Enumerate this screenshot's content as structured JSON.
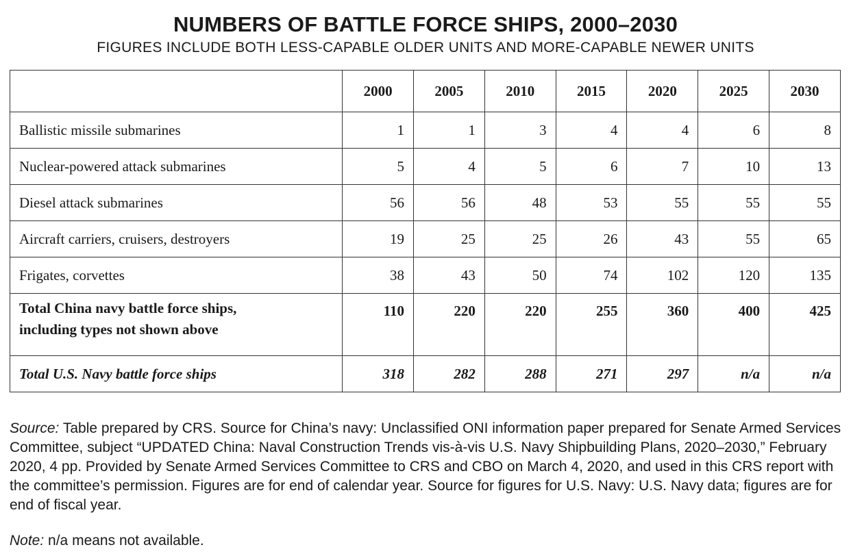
{
  "title": "NUMBERS OF BATTLE FORCE SHIPS, 2000–2030",
  "subtitle": "FIGURES INCLUDE BOTH LESS-CAPABLE OLDER UNITS AND MORE-CAPABLE NEWER UNITS",
  "table": {
    "years": [
      "2000",
      "2005",
      "2010",
      "2015",
      "2020",
      "2025",
      "2030"
    ],
    "rows": [
      {
        "label": "Ballistic missile submarines",
        "values": [
          "1",
          "1",
          "3",
          "4",
          "4",
          "6",
          "8"
        ]
      },
      {
        "label": "Nuclear-powered attack submarines",
        "values": [
          "5",
          "4",
          "5",
          "6",
          "7",
          "10",
          "13"
        ]
      },
      {
        "label": "Diesel attack submarines",
        "values": [
          "56",
          "56",
          "48",
          "53",
          "55",
          "55",
          "55"
        ]
      },
      {
        "label": "Aircraft carriers, cruisers, destroyers",
        "values": [
          "19",
          "25",
          "25",
          "26",
          "43",
          "55",
          "65"
        ]
      },
      {
        "label": "Frigates, corvettes",
        "values": [
          "38",
          "43",
          "50",
          "74",
          "102",
          "120",
          "135"
        ]
      }
    ],
    "total_china": {
      "label_line1": "Total China navy battle force ships,",
      "label_line2": "including types not shown above",
      "values": [
        "110",
        "220",
        "220",
        "255",
        "360",
        "400",
        "425"
      ]
    },
    "total_us": {
      "label": "Total U.S. Navy battle force ships",
      "values": [
        "318",
        "282",
        "288",
        "271",
        "297",
        "n/a",
        "n/a"
      ]
    }
  },
  "source": {
    "label": "Source:",
    "text": "Table prepared by CRS. Source for China’s navy: Unclassified ONI information paper prepared for Senate Armed Services Committee, subject “UPDATED China: Naval Construction Trends vis-à-vis U.S. Navy Shipbuilding Plans, 2020–2030,” February 2020, 4 pp. Provided by Senate Armed Services Committee to CRS and CBO on March 4, 2020, and used in this CRS report with the committee’s permission. Figures are for end of calendar year. Source for figures for U.S. Navy: U.S. Navy data; figures are for end of fiscal year."
  },
  "note": {
    "label": "Note:",
    "text": "n/a means not available."
  }
}
